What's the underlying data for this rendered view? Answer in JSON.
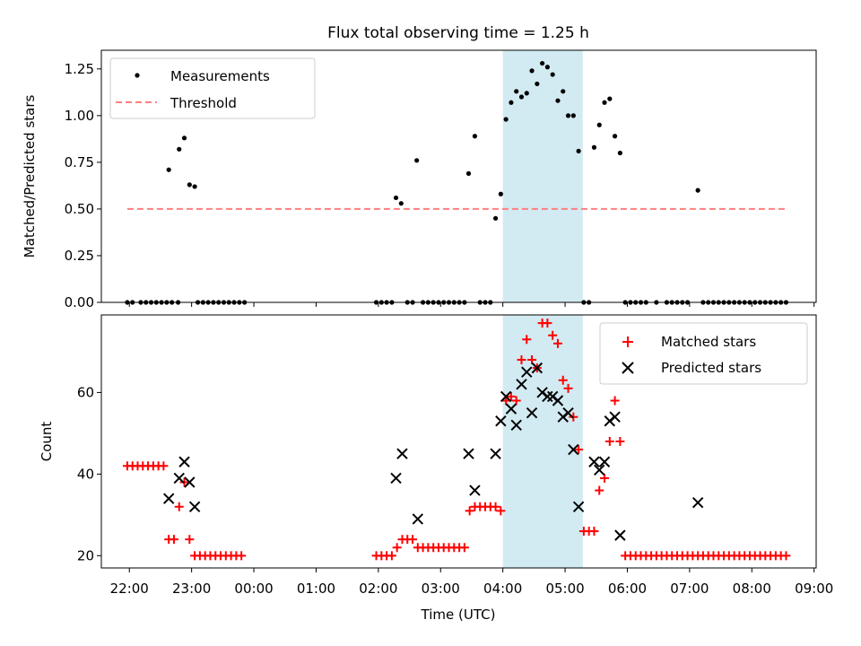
{
  "title": "Flux total observing time = 1.25 h",
  "colors": {
    "measurements": "#000000",
    "threshold": "#ff8080",
    "matched": "#ff0000",
    "predicted": "#000000",
    "highlight": "#add8e6"
  },
  "highlight_span": [
    "04:00",
    "05:17"
  ],
  "chart_data": [
    {
      "type": "scatter",
      "panel": "top",
      "ylabel": "Matched/Predicted stars",
      "ylim": [
        0,
        1.35
      ],
      "yticks": [
        0,
        0.25,
        0.5,
        0.75,
        1.0,
        1.25
      ],
      "ytick_labels": [
        "0.00",
        "0.25",
        "0.50",
        "0.75",
        "1.00",
        "1.25"
      ],
      "xlim": [
        "21:33",
        "09:02"
      ],
      "xticks": [
        "22:00",
        "23:00",
        "00:00",
        "01:00",
        "02:00",
        "03:00",
        "04:00",
        "05:00",
        "06:00",
        "07:00",
        "08:00",
        "09:00"
      ],
      "legend": {
        "placement": "top-left",
        "entries": [
          "Measurements",
          "Threshold"
        ]
      },
      "series": [
        {
          "name": "Measurements",
          "marker": "dot",
          "points": [
            [
              "21:58",
              0
            ],
            [
              "22:03",
              0
            ],
            [
              "22:11",
              0
            ],
            [
              "22:16",
              0
            ],
            [
              "22:21",
              0
            ],
            [
              "22:26",
              0
            ],
            [
              "22:31",
              0
            ],
            [
              "22:36",
              0
            ],
            [
              "22:41",
              0
            ],
            [
              "22:47",
              0
            ],
            [
              "22:38",
              0.71
            ],
            [
              "22:48",
              0.82
            ],
            [
              "22:53",
              0.88
            ],
            [
              "22:58",
              0.63
            ],
            [
              "23:03",
              0.62
            ],
            [
              "23:06",
              0
            ],
            [
              "23:11",
              0
            ],
            [
              "23:16",
              0
            ],
            [
              "23:21",
              0
            ],
            [
              "23:26",
              0
            ],
            [
              "23:31",
              0
            ],
            [
              "23:36",
              0
            ],
            [
              "23:41",
              0
            ],
            [
              "23:46",
              0
            ],
            [
              "23:51",
              0
            ],
            [
              "01:58",
              0
            ],
            [
              "02:03",
              0
            ],
            [
              "02:08",
              0
            ],
            [
              "02:13",
              0
            ],
            [
              "02:17",
              0.56
            ],
            [
              "02:22",
              0.53
            ],
            [
              "02:28",
              0
            ],
            [
              "02:33",
              0
            ],
            [
              "02:37",
              0.76
            ],
            [
              "02:43",
              0
            ],
            [
              "02:48",
              0
            ],
            [
              "02:53",
              0
            ],
            [
              "02:58",
              0
            ],
            [
              "03:03",
              0
            ],
            [
              "03:08",
              0
            ],
            [
              "03:13",
              0
            ],
            [
              "03:18",
              0
            ],
            [
              "03:23",
              0
            ],
            [
              "03:27",
              0.69
            ],
            [
              "03:33",
              0.89
            ],
            [
              "03:38",
              0
            ],
            [
              "03:43",
              0
            ],
            [
              "03:48",
              0
            ],
            [
              "03:53",
              0.45
            ],
            [
              "03:58",
              0.58
            ],
            [
              "04:03",
              0.98
            ],
            [
              "04:08",
              1.07
            ],
            [
              "04:13",
              1.13
            ],
            [
              "04:18",
              1.1
            ],
            [
              "04:23",
              1.12
            ],
            [
              "04:28",
              1.24
            ],
            [
              "04:33",
              1.17
            ],
            [
              "04:38",
              1.28
            ],
            [
              "04:43",
              1.26
            ],
            [
              "04:48",
              1.22
            ],
            [
              "04:53",
              1.08
            ],
            [
              "04:58",
              1.13
            ],
            [
              "05:03",
              1.0
            ],
            [
              "05:08",
              1.0
            ],
            [
              "05:13",
              0.81
            ],
            [
              "05:18",
              0
            ],
            [
              "05:23",
              0
            ],
            [
              "05:28",
              0.83
            ],
            [
              "05:33",
              0.95
            ],
            [
              "05:38",
              1.07
            ],
            [
              "05:43",
              1.09
            ],
            [
              "05:48",
              0.89
            ],
            [
              "05:53",
              0.8
            ],
            [
              "05:58",
              0
            ],
            [
              "06:03",
              0
            ],
            [
              "06:08",
              0
            ],
            [
              "06:13",
              0
            ],
            [
              "06:18",
              0
            ],
            [
              "06:28",
              0
            ],
            [
              "06:38",
              0
            ],
            [
              "06:43",
              0
            ],
            [
              "06:48",
              0
            ],
            [
              "06:53",
              0
            ],
            [
              "06:58",
              0
            ],
            [
              "07:08",
              0.6
            ],
            [
              "07:13",
              0
            ],
            [
              "07:18",
              0
            ],
            [
              "07:23",
              0
            ],
            [
              "07:28",
              0
            ],
            [
              "07:33",
              0
            ],
            [
              "07:38",
              0
            ],
            [
              "07:43",
              0
            ],
            [
              "07:48",
              0
            ],
            [
              "07:53",
              0
            ],
            [
              "07:58",
              0
            ],
            [
              "08:03",
              0
            ],
            [
              "08:08",
              0
            ],
            [
              "08:13",
              0
            ],
            [
              "08:18",
              0
            ],
            [
              "08:23",
              0
            ],
            [
              "08:28",
              0
            ],
            [
              "08:33",
              0
            ]
          ]
        },
        {
          "name": "Threshold",
          "style": "dashed",
          "points": [
            [
              "21:58",
              0.5
            ],
            [
              "08:33",
              0.5
            ]
          ]
        }
      ]
    },
    {
      "type": "scatter",
      "panel": "bottom",
      "xlabel": "Time (UTC)",
      "ylabel": "Count",
      "ylim": [
        17,
        79
      ],
      "yticks": [
        20,
        40,
        60
      ],
      "xlim": [
        "21:33",
        "09:02"
      ],
      "xticks": [
        "22:00",
        "23:00",
        "00:00",
        "01:00",
        "02:00",
        "03:00",
        "04:00",
        "05:00",
        "06:00",
        "07:00",
        "08:00",
        "09:00"
      ],
      "xtick_labels": [
        "22:00",
        "23:00",
        "00:00",
        "01:00",
        "02:00",
        "03:00",
        "04:00",
        "05:00",
        "06:00",
        "07:00",
        "08:00",
        "09:00"
      ],
      "legend": {
        "placement": "top-right",
        "entries": [
          "Matched stars",
          "Predicted stars"
        ]
      },
      "series": [
        {
          "name": "Matched stars",
          "marker": "plus",
          "points": [
            [
              "21:58",
              42
            ],
            [
              "22:03",
              42
            ],
            [
              "22:08",
              42
            ],
            [
              "22:13",
              42
            ],
            [
              "22:18",
              42
            ],
            [
              "22:23",
              42
            ],
            [
              "22:28",
              42
            ],
            [
              "22:33",
              42
            ],
            [
              "22:38",
              24
            ],
            [
              "22:43",
              24
            ],
            [
              "22:48",
              32
            ],
            [
              "22:53",
              38
            ],
            [
              "22:58",
              24
            ],
            [
              "23:03",
              20
            ],
            [
              "23:08",
              20
            ],
            [
              "23:13",
              20
            ],
            [
              "23:18",
              20
            ],
            [
              "23:23",
              20
            ],
            [
              "23:28",
              20
            ],
            [
              "23:33",
              20
            ],
            [
              "23:38",
              20
            ],
            [
              "23:43",
              20
            ],
            [
              "23:48",
              20
            ],
            [
              "01:58",
              20
            ],
            [
              "02:03",
              20
            ],
            [
              "02:08",
              20
            ],
            [
              "02:13",
              20
            ],
            [
              "02:18",
              22
            ],
            [
              "02:23",
              24
            ],
            [
              "02:28",
              24
            ],
            [
              "02:33",
              24
            ],
            [
              "02:38",
              22
            ],
            [
              "02:43",
              22
            ],
            [
              "02:48",
              22
            ],
            [
              "02:53",
              22
            ],
            [
              "02:58",
              22
            ],
            [
              "03:03",
              22
            ],
            [
              "03:08",
              22
            ],
            [
              "03:13",
              22
            ],
            [
              "03:18",
              22
            ],
            [
              "03:23",
              22
            ],
            [
              "03:28",
              31
            ],
            [
              "03:33",
              32
            ],
            [
              "03:38",
              32
            ],
            [
              "03:43",
              32
            ],
            [
              "03:48",
              32
            ],
            [
              "03:53",
              32
            ],
            [
              "03:58",
              31
            ],
            [
              "04:03",
              58
            ],
            [
              "04:08",
              59
            ],
            [
              "04:13",
              58
            ],
            [
              "04:18",
              68
            ],
            [
              "04:23",
              73
            ],
            [
              "04:28",
              68
            ],
            [
              "04:33",
              66
            ],
            [
              "04:38",
              77
            ],
            [
              "04:43",
              77
            ],
            [
              "04:48",
              74
            ],
            [
              "04:53",
              72
            ],
            [
              "04:58",
              63
            ],
            [
              "05:03",
              61
            ],
            [
              "05:08",
              54
            ],
            [
              "05:13",
              46
            ],
            [
              "05:18",
              26
            ],
            [
              "05:23",
              26
            ],
            [
              "05:28",
              26
            ],
            [
              "05:33",
              36
            ],
            [
              "05:38",
              39
            ],
            [
              "05:43",
              48
            ],
            [
              "05:48",
              58
            ],
            [
              "05:53",
              48
            ],
            [
              "05:58",
              20
            ],
            [
              "06:03",
              20
            ],
            [
              "06:08",
              20
            ],
            [
              "06:13",
              20
            ],
            [
              "06:18",
              20
            ],
            [
              "06:23",
              20
            ],
            [
              "06:28",
              20
            ],
            [
              "06:33",
              20
            ],
            [
              "06:38",
              20
            ],
            [
              "06:43",
              20
            ],
            [
              "06:48",
              20
            ],
            [
              "06:53",
              20
            ],
            [
              "06:58",
              20
            ],
            [
              "07:03",
              20
            ],
            [
              "07:08",
              20
            ],
            [
              "07:13",
              20
            ],
            [
              "07:18",
              20
            ],
            [
              "07:23",
              20
            ],
            [
              "07:28",
              20
            ],
            [
              "07:33",
              20
            ],
            [
              "07:38",
              20
            ],
            [
              "07:43",
              20
            ],
            [
              "07:48",
              20
            ],
            [
              "07:53",
              20
            ],
            [
              "07:58",
              20
            ],
            [
              "08:03",
              20
            ],
            [
              "08:08",
              20
            ],
            [
              "08:13",
              20
            ],
            [
              "08:18",
              20
            ],
            [
              "08:23",
              20
            ],
            [
              "08:28",
              20
            ],
            [
              "08:33",
              20
            ]
          ]
        },
        {
          "name": "Predicted stars",
          "marker": "x",
          "points": [
            [
              "22:38",
              34
            ],
            [
              "22:48",
              39
            ],
            [
              "22:53",
              43
            ],
            [
              "22:58",
              38
            ],
            [
              "23:03",
              32
            ],
            [
              "02:17",
              39
            ],
            [
              "02:23",
              45
            ],
            [
              "02:38",
              29
            ],
            [
              "03:27",
              45
            ],
            [
              "03:33",
              36
            ],
            [
              "03:53",
              45
            ],
            [
              "03:58",
              53
            ],
            [
              "04:03",
              59
            ],
            [
              "04:08",
              56
            ],
            [
              "04:13",
              52
            ],
            [
              "04:18",
              62
            ],
            [
              "04:23",
              65
            ],
            [
              "04:28",
              55
            ],
            [
              "04:33",
              66
            ],
            [
              "04:38",
              60
            ],
            [
              "04:43",
              59
            ],
            [
              "04:48",
              59
            ],
            [
              "04:53",
              58
            ],
            [
              "04:58",
              54
            ],
            [
              "05:03",
              55
            ],
            [
              "05:08",
              46
            ],
            [
              "05:13",
              32
            ],
            [
              "05:28",
              43
            ],
            [
              "05:33",
              41
            ],
            [
              "05:38",
              43
            ],
            [
              "05:43",
              53
            ],
            [
              "05:48",
              54
            ],
            [
              "05:53",
              25
            ],
            [
              "07:08",
              33
            ]
          ]
        }
      ]
    }
  ]
}
